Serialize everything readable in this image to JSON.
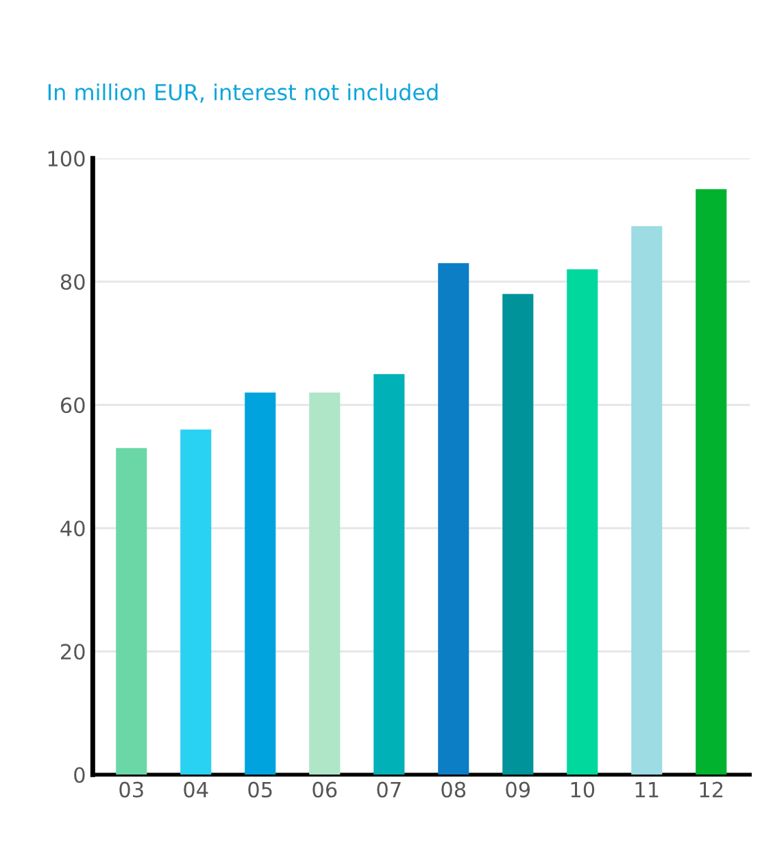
{
  "chart_data": {
    "type": "bar",
    "subtitle": "In million EUR, interest not included",
    "categories": [
      "03",
      "04",
      "05",
      "06",
      "07",
      "08",
      "09",
      "10",
      "11",
      "12"
    ],
    "values": [
      53,
      56,
      62,
      62,
      65,
      83,
      78,
      82,
      89,
      95
    ],
    "colors": [
      "#6bd7a6",
      "#29d1f2",
      "#00a3dd",
      "#aee6c7",
      "#00b1b8",
      "#0b7ec6",
      "#01939a",
      "#00d89e",
      "#9cdce2",
      "#00b22e"
    ],
    "ylim": [
      0,
      100
    ],
    "yticks": [
      0,
      20,
      40,
      60,
      80,
      100
    ],
    "grid": "y"
  }
}
